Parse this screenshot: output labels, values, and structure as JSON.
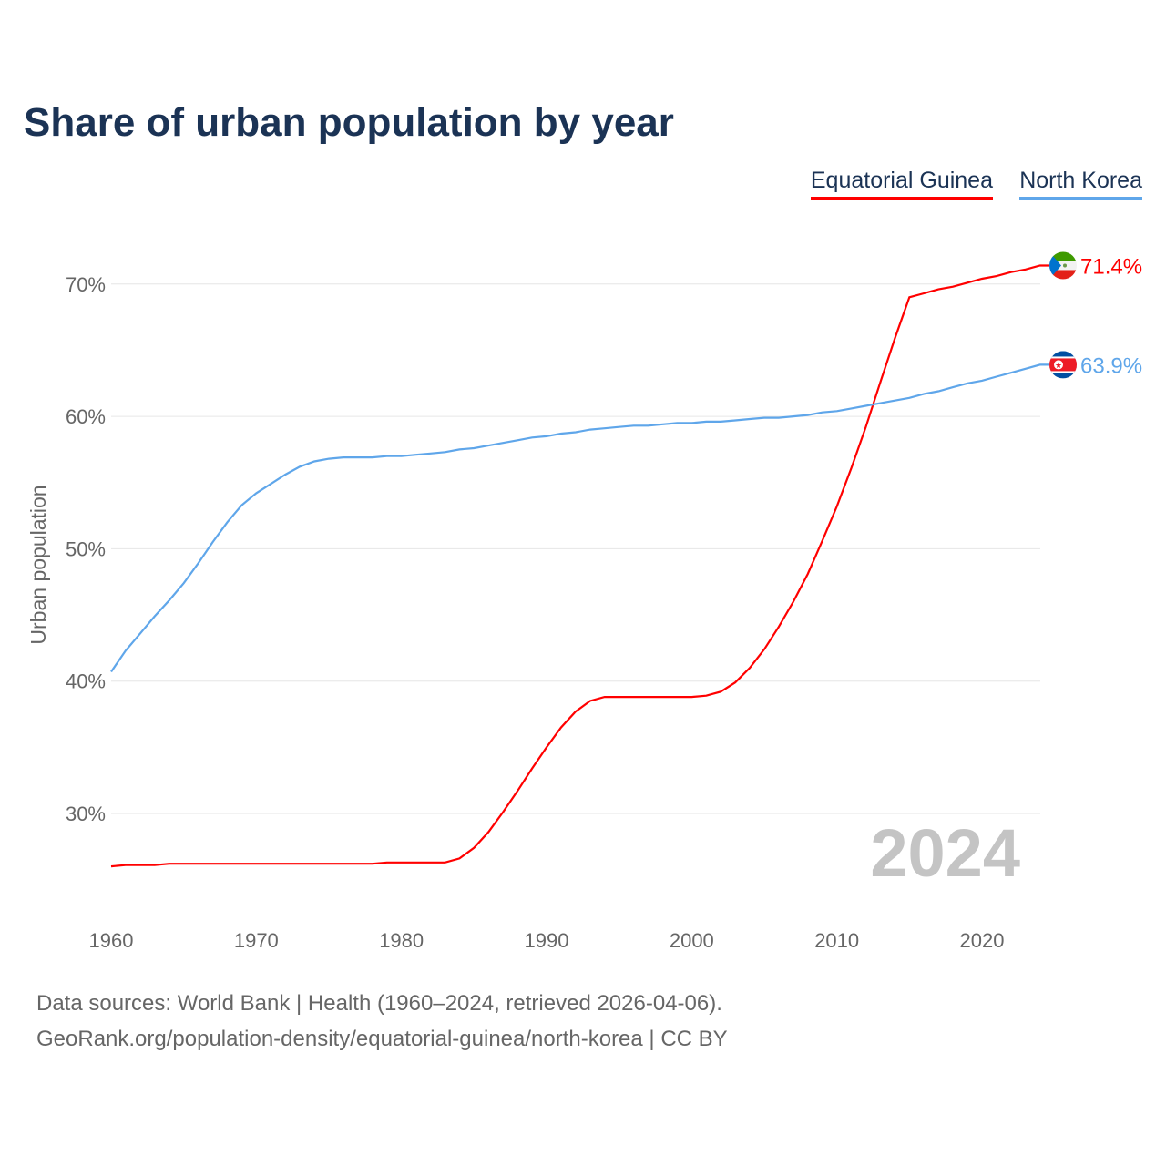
{
  "chart_data": {
    "type": "line",
    "title": "Share of urban population by year",
    "ylabel": "Urban population",
    "xlabel": "",
    "ylim": [
      22,
      74
    ],
    "xlim": [
      1960,
      2024
    ],
    "yticks": [
      30,
      40,
      50,
      60,
      70
    ],
    "ytick_labels": [
      "30%",
      "40%",
      "50%",
      "60%",
      "70%"
    ],
    "xticks": [
      1960,
      1970,
      1980,
      1990,
      2000,
      2010,
      2020
    ],
    "xtick_labels": [
      "1960",
      "1970",
      "1980",
      "1990",
      "2000",
      "2010",
      "2020"
    ],
    "grid": true,
    "legend_position": "top-right",
    "year_watermark": "2024",
    "x": [
      1960,
      1961,
      1962,
      1963,
      1964,
      1965,
      1966,
      1967,
      1968,
      1969,
      1970,
      1971,
      1972,
      1973,
      1974,
      1975,
      1976,
      1977,
      1978,
      1979,
      1980,
      1981,
      1982,
      1983,
      1984,
      1985,
      1986,
      1987,
      1988,
      1989,
      1990,
      1991,
      1992,
      1993,
      1994,
      1995,
      1996,
      1997,
      1998,
      1999,
      2000,
      2001,
      2002,
      2003,
      2004,
      2005,
      2006,
      2007,
      2008,
      2009,
      2010,
      2011,
      2012,
      2013,
      2014,
      2015,
      2016,
      2017,
      2018,
      2019,
      2020,
      2021,
      2022,
      2023,
      2024
    ],
    "series": [
      {
        "name": "Equatorial Guinea",
        "color": "#ff0000",
        "end_label": "71.4%",
        "flag": "equatorial-guinea",
        "values": [
          26.0,
          26.1,
          26.1,
          26.1,
          26.2,
          26.2,
          26.2,
          26.2,
          26.2,
          26.2,
          26.2,
          26.2,
          26.2,
          26.2,
          26.2,
          26.2,
          26.2,
          26.2,
          26.2,
          26.3,
          26.3,
          26.3,
          26.3,
          26.3,
          26.6,
          27.4,
          28.6,
          30.1,
          31.7,
          33.4,
          35.0,
          36.5,
          37.7,
          38.5,
          38.8,
          38.8,
          38.8,
          38.8,
          38.8,
          38.8,
          38.8,
          38.9,
          39.2,
          39.9,
          41.0,
          42.4,
          44.1,
          46.0,
          48.1,
          50.6,
          53.2,
          56.1,
          59.2,
          62.6,
          65.9,
          69.0,
          69.3,
          69.6,
          69.8,
          70.1,
          70.4,
          70.6,
          70.9,
          71.1,
          71.4
        ]
      },
      {
        "name": "North Korea",
        "color": "#5fa6ea",
        "end_label": "63.9%",
        "flag": "north-korea",
        "values": [
          40.7,
          42.3,
          43.6,
          44.9,
          46.1,
          47.4,
          48.9,
          50.5,
          52.0,
          53.3,
          54.2,
          54.9,
          55.6,
          56.2,
          56.6,
          56.8,
          56.9,
          56.9,
          56.9,
          57.0,
          57.0,
          57.1,
          57.2,
          57.3,
          57.5,
          57.6,
          57.8,
          58.0,
          58.2,
          58.4,
          58.5,
          58.7,
          58.8,
          59.0,
          59.1,
          59.2,
          59.3,
          59.3,
          59.4,
          59.5,
          59.5,
          59.6,
          59.6,
          59.7,
          59.8,
          59.9,
          59.9,
          60.0,
          60.1,
          60.3,
          60.4,
          60.6,
          60.8,
          61.0,
          61.2,
          61.4,
          61.7,
          61.9,
          62.2,
          62.5,
          62.7,
          63.0,
          63.3,
          63.6,
          63.9
        ]
      }
    ]
  },
  "footer": {
    "line1": "Data sources: World Bank | Health (1960–2024, retrieved 2026-04-06).",
    "line2": "GeoRank.org/population-density/equatorial-guinea/north-korea | CC BY"
  }
}
